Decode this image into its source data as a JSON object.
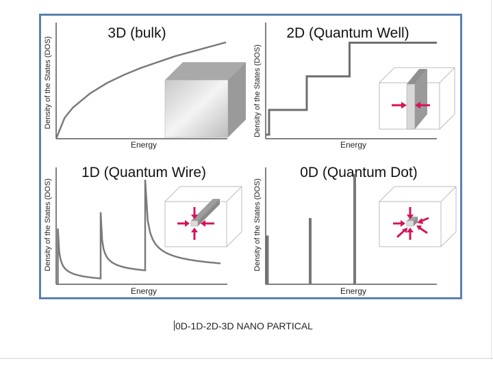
{
  "caption": "0D-1D-2D-3D NANO PARTICAL",
  "colors": {
    "frame": "#5b7fb0",
    "curve": "#7a7a7a",
    "axis": "#555555",
    "arrow": "#d4145a"
  },
  "chart_data": [
    {
      "type": "line",
      "title": "3D (bulk)",
      "xlabel": "Energy",
      "ylabel": "Density of the States (DOS)",
      "shape": "square-root growth",
      "x": [
        0,
        0.05,
        0.1,
        0.2,
        0.3,
        0.4,
        0.5,
        0.6,
        0.7,
        0.8,
        0.9,
        1.0
      ],
      "y": [
        0,
        0.18,
        0.27,
        0.39,
        0.48,
        0.55,
        0.61,
        0.66,
        0.71,
        0.75,
        0.79,
        0.83
      ],
      "inset": "bulk-cube-icon"
    },
    {
      "type": "line",
      "title": "2D (Quantum Well)",
      "xlabel": "Energy",
      "ylabel": "Density of the States (DOS)",
      "shape": "staircase",
      "x": [
        0,
        0.02,
        0.02,
        0.24,
        0.24,
        0.49,
        0.49,
        1.0
      ],
      "y": [
        0,
        0,
        0.22,
        0.22,
        0.52,
        0.52,
        0.82,
        0.82
      ],
      "inset": "quantum-well-icon"
    },
    {
      "type": "line",
      "title": "1D (Quantum Wire)",
      "xlabel": "Energy",
      "ylabel": "Density of the States (DOS)",
      "shape": "inverse-square-root peaks",
      "peaks_x": [
        0.01,
        0.26,
        0.52
      ],
      "peak_heights": [
        0.48,
        0.62,
        0.9
      ],
      "tail_level": [
        0.05,
        0.12,
        0.18
      ],
      "inset": "quantum-wire-icon"
    },
    {
      "type": "bar",
      "title": "0D (Quantum Dot)",
      "xlabel": "Energy",
      "ylabel": "Density of the States (DOS)",
      "shape": "delta functions",
      "x": [
        0.01,
        0.26,
        0.52
      ],
      "values": [
        0.42,
        0.57,
        0.95
      ],
      "inset": "quantum-dot-icon"
    }
  ]
}
